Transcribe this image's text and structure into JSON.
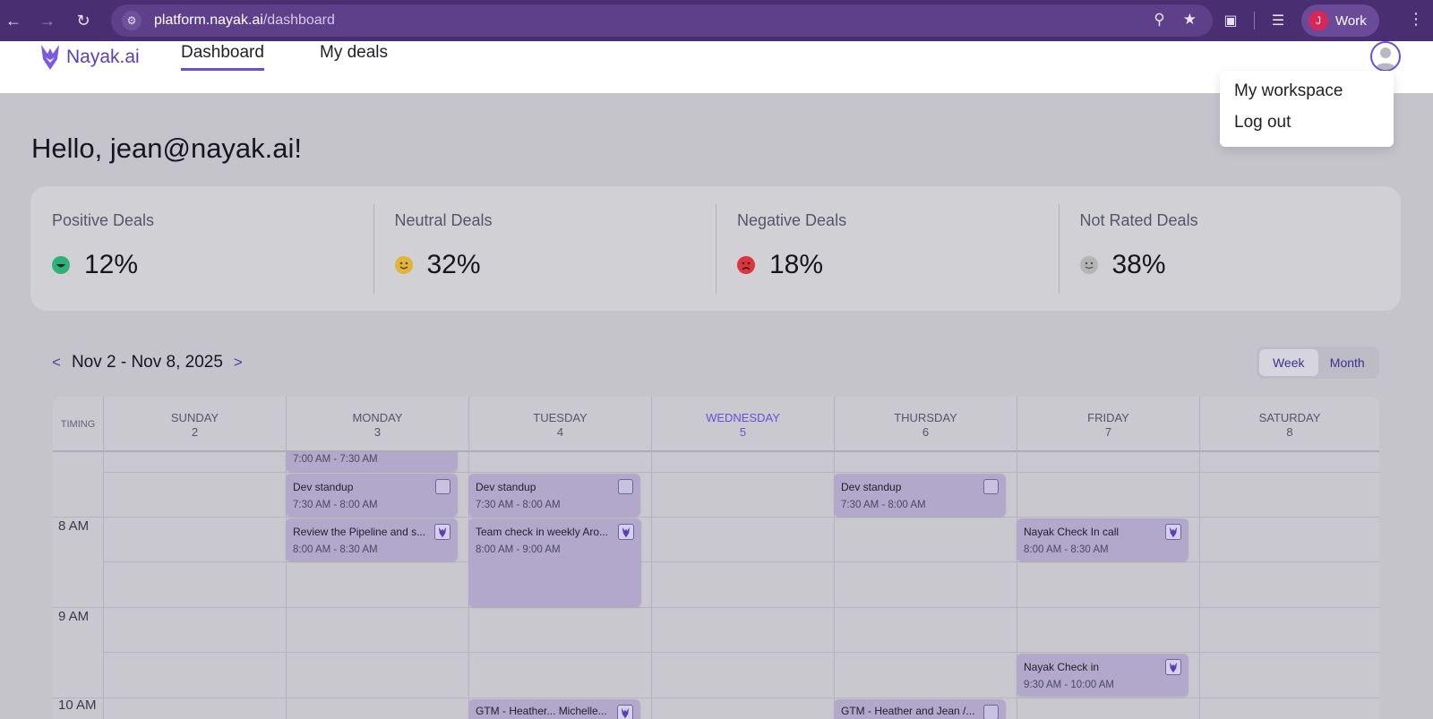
{
  "browser": {
    "url_host": "platform.nayak.ai",
    "url_path": "/dashboard",
    "profile_initial": "J",
    "profile_label": "Work"
  },
  "app": {
    "logo_text": "Nayak.ai",
    "nav": [
      {
        "label": "Dashboard",
        "active": true
      },
      {
        "label": "My deals",
        "active": false
      }
    ],
    "user_menu": [
      "My workspace",
      "Log out"
    ]
  },
  "greeting": "Hello, jean@nayak.ai!",
  "stats": [
    {
      "label": "Positive Deals",
      "value": "12%",
      "color": "#2db37a"
    },
    {
      "label": "Neutral Deals",
      "value": "32%",
      "color": "#e3b43a"
    },
    {
      "label": "Negative Deals",
      "value": "18%",
      "color": "#d9363e"
    },
    {
      "label": "Not Rated Deals",
      "value": "38%",
      "color": "#b5b5b5"
    }
  ],
  "calendar": {
    "prev": "<",
    "next": ">",
    "range": "Nov 2 - Nov 8, 2025",
    "views": [
      {
        "label": "Week",
        "active": true
      },
      {
        "label": "Month",
        "active": false
      }
    ],
    "timing_label": "TIMING",
    "days": [
      {
        "name": "SUNDAY",
        "num": "2"
      },
      {
        "name": "MONDAY",
        "num": "3"
      },
      {
        "name": "TUESDAY",
        "num": "4"
      },
      {
        "name": "WEDNESDAY",
        "num": "5",
        "today": true
      },
      {
        "name": "THURSDAY",
        "num": "6"
      },
      {
        "name": "FRIDAY",
        "num": "7"
      },
      {
        "name": "SATURDAY",
        "num": "8"
      }
    ],
    "hours": [
      "8 AM",
      "9 AM",
      "10 AM"
    ],
    "events": {
      "mon_partial_time": "7:00 AM - 7:30 AM",
      "mon_standup": {
        "title": "Dev standup",
        "time": "7:30 AM - 8:00 AM"
      },
      "mon_review": {
        "title": "Review the Pipeline and s...",
        "time": "8:00 AM - 8:30 AM"
      },
      "tue_standup": {
        "title": "Dev standup",
        "time": "7:30 AM - 8:00 AM"
      },
      "tue_team": {
        "title": "Team check in weekly Aro...",
        "time": "8:00 AM - 9:00 AM"
      },
      "tue_bottom": {
        "title": "GTM - Heather... Michelle..."
      },
      "thu_standup": {
        "title": "Dev standup",
        "time": "7:30 AM - 8:00 AM"
      },
      "thu_bottom": {
        "title": "GTM - Heather and Jean /..."
      },
      "fri_checkin_call": {
        "title": "Nayak Check In call",
        "time": "8:00 AM - 8:30 AM"
      },
      "fri_checkin": {
        "title": "Nayak Check in",
        "time": "9:30 AM - 10:00 AM"
      }
    }
  }
}
